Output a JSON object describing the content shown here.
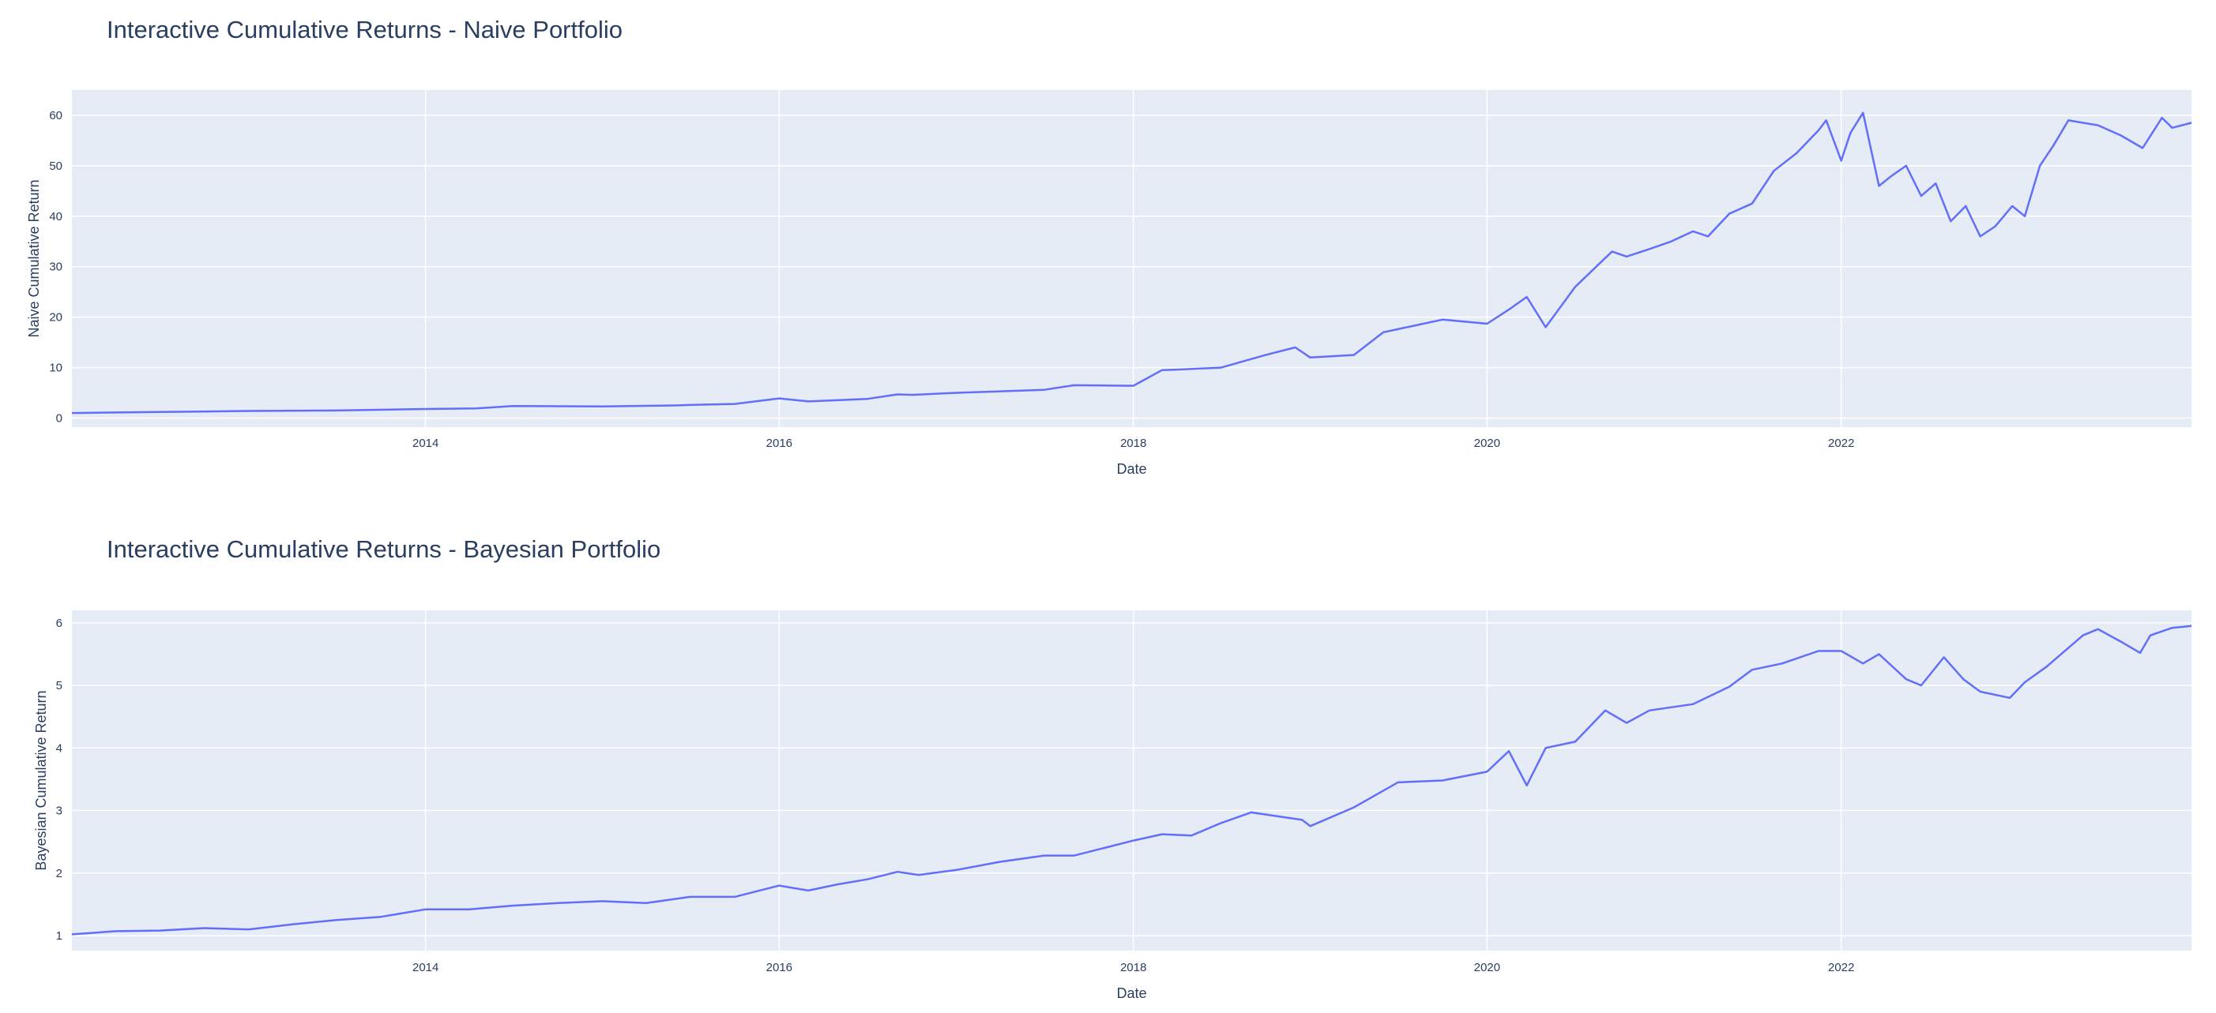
{
  "charts": [
    {
      "title": "Interactive Cumulative Returns - Naive Portfolio",
      "xlabel": "Date",
      "ylabel": "Naive Cumulative Return"
    },
    {
      "title": "Interactive Cumulative Returns - Bayesian Portfolio",
      "xlabel": "Date",
      "ylabel": "Bayesian Cumulative Return"
    }
  ],
  "colors": {
    "plot_bg": "#e5ecf6",
    "grid": "#ffffff",
    "line": "#636efa",
    "text": "#2a3f5f"
  },
  "chart_data": [
    {
      "type": "line",
      "title": "Interactive Cumulative Returns - Naive Portfolio",
      "xlabel": "Date",
      "ylabel": "Naive Cumulative Return",
      "xlim": [
        "2012-01-02",
        "2023-12-25"
      ],
      "ylim": [
        -1.8,
        65
      ],
      "x_ticks": [
        "2014",
        "2016",
        "2018",
        "2020",
        "2022"
      ],
      "y_ticks": [
        0,
        10,
        20,
        30,
        40,
        50,
        60
      ],
      "grid": true,
      "legend": "none",
      "series": [
        {
          "x": [
            "2012-01-02",
            "2012-07-01",
            "2013-01-01",
            "2013-07-01",
            "2014-01-01",
            "2014-04-15",
            "2014-07-01",
            "2015-01-01",
            "2015-06-01",
            "2015-07-01",
            "2015-10-01",
            "2016-01-01",
            "2016-03-01",
            "2016-07-01",
            "2016-09-01",
            "2016-10-01",
            "2017-01-01",
            "2017-07-01",
            "2017-09-01",
            "2018-01-01",
            "2018-03-01",
            "2018-04-01",
            "2018-07-01",
            "2018-10-01",
            "2018-12-01",
            "2019-01-01",
            "2019-04-01",
            "2019-06-01",
            "2019-10-01",
            "2020-01-01",
            "2020-02-15",
            "2020-03-23",
            "2020-05-01",
            "2020-07-01",
            "2020-09-15",
            "2020-10-15",
            "2020-12-01",
            "2021-01-15",
            "2021-03-01",
            "2021-04-01",
            "2021-05-15",
            "2021-07-01",
            "2021-08-15",
            "2021-10-01",
            "2021-11-15",
            "2021-12-01",
            "2022-01-01",
            "2022-01-20",
            "2022-02-15",
            "2022-03-20",
            "2022-04-15",
            "2022-05-15",
            "2022-06-15",
            "2022-07-15",
            "2022-08-15",
            "2022-09-15",
            "2022-10-15",
            "2022-11-15",
            "2022-12-20",
            "2023-01-15",
            "2023-02-15",
            "2023-03-15",
            "2023-04-15",
            "2023-05-15",
            "2023-06-15",
            "2023-08-01",
            "2023-09-15",
            "2023-10-25",
            "2023-11-15",
            "2023-12-25"
          ],
          "y": [
            1.0,
            1.2,
            1.4,
            1.5,
            1.8,
            1.9,
            2.4,
            2.3,
            2.5,
            2.6,
            2.8,
            3.9,
            3.3,
            3.8,
            4.7,
            4.6,
            5.0,
            5.6,
            6.5,
            6.4,
            9.5,
            9.6,
            10.0,
            12.5,
            14.0,
            12.0,
            12.5,
            17.0,
            19.5,
            18.7,
            21.5,
            24.0,
            18.0,
            26.0,
            33.0,
            32.0,
            33.5,
            35.0,
            37.0,
            36.0,
            40.5,
            42.5,
            49.0,
            52.5,
            57.0,
            59.0,
            51.0,
            56.5,
            60.5,
            46.0,
            48.0,
            50.0,
            44.0,
            46.5,
            39.0,
            42.0,
            36.0,
            38.0,
            42.0,
            40.0,
            50.0,
            54.0,
            59.0,
            58.5,
            58.0,
            56.0,
            53.5,
            59.5,
            57.5,
            58.5
          ]
        }
      ]
    },
    {
      "type": "line",
      "title": "Interactive Cumulative Returns - Bayesian Portfolio",
      "xlabel": "Date",
      "ylabel": "Bayesian Cumulative Return",
      "xlim": [
        "2012-01-02",
        "2023-12-25"
      ],
      "ylim": [
        0.76,
        6.2
      ],
      "x_ticks": [
        "2014",
        "2016",
        "2018",
        "2020",
        "2022"
      ],
      "y_ticks": [
        1,
        2,
        3,
        4,
        5,
        6
      ],
      "grid": true,
      "legend": "none",
      "series": [
        {
          "x": [
            "2012-01-02",
            "2012-04-01",
            "2012-07-01",
            "2012-10-01",
            "2013-01-01",
            "2013-04-01",
            "2013-07-01",
            "2013-10-01",
            "2014-01-01",
            "2014-04-01",
            "2014-07-01",
            "2014-10-01",
            "2015-01-01",
            "2015-04-01",
            "2015-07-01",
            "2015-10-01",
            "2016-01-01",
            "2016-03-01",
            "2016-05-01",
            "2016-07-01",
            "2016-09-01",
            "2016-10-15",
            "2017-01-01",
            "2017-04-01",
            "2017-07-01",
            "2017-09-01",
            "2018-01-01",
            "2018-03-01",
            "2018-05-01",
            "2018-07-01",
            "2018-09-01",
            "2018-12-15",
            "2019-01-01",
            "2019-04-01",
            "2019-07-01",
            "2019-10-01",
            "2020-01-01",
            "2020-02-15",
            "2020-03-23",
            "2020-05-01",
            "2020-07-01",
            "2020-09-01",
            "2020-10-15",
            "2020-12-01",
            "2021-03-01",
            "2021-05-15",
            "2021-07-01",
            "2021-09-01",
            "2021-11-15",
            "2022-01-01",
            "2022-02-15",
            "2022-03-20",
            "2022-05-15",
            "2022-06-15",
            "2022-08-01",
            "2022-09-10",
            "2022-10-15",
            "2022-12-15",
            "2023-01-15",
            "2023-03-01",
            "2023-05-15",
            "2023-06-15",
            "2023-08-01",
            "2023-09-10",
            "2023-10-01",
            "2023-11-15",
            "2023-12-25"
          ],
          "y": [
            1.02,
            1.07,
            1.08,
            1.12,
            1.1,
            1.18,
            1.25,
            1.3,
            1.42,
            1.42,
            1.48,
            1.52,
            1.55,
            1.52,
            1.62,
            1.62,
            1.8,
            1.72,
            1.82,
            1.9,
            2.02,
            1.97,
            2.05,
            2.18,
            2.28,
            2.28,
            2.52,
            2.62,
            2.6,
            2.8,
            2.97,
            2.85,
            2.75,
            3.05,
            3.45,
            3.48,
            3.62,
            3.95,
            3.4,
            4.0,
            4.1,
            4.6,
            4.4,
            4.6,
            4.7,
            4.98,
            5.25,
            5.35,
            5.55,
            5.55,
            5.35,
            5.5,
            5.1,
            5.0,
            5.45,
            5.1,
            4.9,
            4.8,
            5.05,
            5.3,
            5.8,
            5.9,
            5.7,
            5.52,
            5.8,
            5.92,
            5.95
          ]
        }
      ]
    }
  ]
}
